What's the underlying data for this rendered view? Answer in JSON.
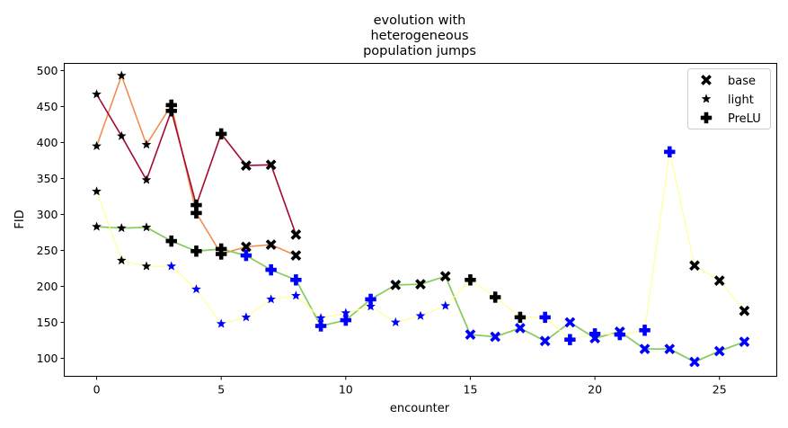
{
  "chart_data": {
    "type": "line",
    "title": [
      "evolution with",
      "heterogeneous",
      "population jumps"
    ],
    "xlabel": "encounter",
    "ylabel": "FID",
    "xlim": [
      -1.3,
      27.3
    ],
    "ylim": [
      75,
      510
    ],
    "xticks": [
      0,
      5,
      10,
      15,
      20,
      25
    ],
    "yticks": [
      100,
      150,
      200,
      250,
      300,
      350,
      400,
      450,
      500
    ],
    "legend": {
      "location": "top-right",
      "entries": [
        {
          "label": "base",
          "marker": "X"
        },
        {
          "label": "light",
          "marker": "star"
        },
        {
          "label": "PreLU",
          "marker": "plus"
        }
      ]
    },
    "series": [
      {
        "name": "orange line",
        "color": "#f28d52",
        "width": 1.6,
        "points": [
          {
            "x": 0,
            "y": 395,
            "m": "star",
            "c": "#000000"
          },
          {
            "x": 1,
            "y": 493,
            "m": "star",
            "c": "#000000"
          },
          {
            "x": 2,
            "y": 397,
            "m": "star",
            "c": "#000000"
          },
          {
            "x": 3,
            "y": 452,
            "m": "plus",
            "c": "#000000"
          },
          {
            "x": 4,
            "y": 302,
            "m": "plus",
            "c": "#000000"
          },
          {
            "x": 5,
            "y": 245,
            "m": "plus",
            "c": "#000000"
          },
          {
            "x": 6,
            "y": 255,
            "m": "X",
            "c": "#000000"
          },
          {
            "x": 7,
            "y": 258,
            "m": "X",
            "c": "#000000"
          },
          {
            "x": 8,
            "y": 243,
            "m": "X",
            "c": "#000000"
          }
        ]
      },
      {
        "name": "crimson line",
        "color": "#a50a2e",
        "width": 1.6,
        "points": [
          {
            "x": 0,
            "y": 467,
            "m": "star",
            "c": "#000000"
          },
          {
            "x": 1,
            "y": 409,
            "m": "star",
            "c": "#000000"
          },
          {
            "x": 2,
            "y": 348,
            "m": "star",
            "c": "#000000"
          },
          {
            "x": 3,
            "y": 444,
            "m": "plus",
            "c": "#000000"
          },
          {
            "x": 4,
            "y": 313,
            "m": "plus",
            "c": "#000000"
          },
          {
            "x": 5,
            "y": 412,
            "m": "plus",
            "c": "#000000"
          },
          {
            "x": 6,
            "y": 368,
            "m": "X",
            "c": "#000000"
          },
          {
            "x": 7,
            "y": 369,
            "m": "X",
            "c": "#000000"
          },
          {
            "x": 8,
            "y": 272,
            "m": "X",
            "c": "#000000"
          }
        ]
      },
      {
        "name": "green line",
        "color": "#8bcc62",
        "width": 1.8,
        "points": [
          {
            "x": 0,
            "y": 283,
            "m": "star",
            "c": "#000000"
          },
          {
            "x": 1,
            "y": 281,
            "m": "star",
            "c": "#000000"
          },
          {
            "x": 2,
            "y": 282,
            "m": "star",
            "c": "#000000"
          },
          {
            "x": 3,
            "y": 263,
            "m": "plus",
            "c": "#000000"
          },
          {
            "x": 4,
            "y": 249,
            "m": "plus",
            "c": "#000000"
          },
          {
            "x": 5,
            "y": 252,
            "m": "plus",
            "c": "#000000"
          },
          {
            "x": 6,
            "y": 243,
            "m": "plus",
            "c": "#0000ff"
          },
          {
            "x": 7,
            "y": 223,
            "m": "plus",
            "c": "#0000ff"
          },
          {
            "x": 8,
            "y": 209,
            "m": "plus",
            "c": "#0000ff"
          },
          {
            "x": 9,
            "y": 145,
            "m": "plus",
            "c": "#0000ff"
          },
          {
            "x": 10,
            "y": 153,
            "m": "plus",
            "c": "#0000ff"
          },
          {
            "x": 11,
            "y": 182,
            "m": "plus",
            "c": "#0000ff"
          },
          {
            "x": 12,
            "y": 202,
            "m": "X",
            "c": "#000000"
          },
          {
            "x": 13,
            "y": 203,
            "m": "X",
            "c": "#000000"
          },
          {
            "x": 14,
            "y": 214,
            "m": "X",
            "c": "#000000"
          },
          {
            "x": 15,
            "y": 133,
            "m": "X",
            "c": "#0000ff"
          },
          {
            "x": 16,
            "y": 130,
            "m": "X",
            "c": "#0000ff"
          },
          {
            "x": 17,
            "y": 142,
            "m": "X",
            "c": "#0000ff"
          },
          {
            "x": 18,
            "y": 124,
            "m": "X",
            "c": "#0000ff"
          },
          {
            "x": 19,
            "y": 150,
            "m": "X",
            "c": "#0000ff"
          },
          {
            "x": 20,
            "y": 128,
            "m": "X",
            "c": "#0000ff"
          },
          {
            "x": 21,
            "y": 137,
            "m": "X",
            "c": "#0000ff"
          },
          {
            "x": 22,
            "y": 113,
            "m": "X",
            "c": "#0000ff"
          },
          {
            "x": 23,
            "y": 113,
            "m": "X",
            "c": "#0000ff"
          },
          {
            "x": 24,
            "y": 95,
            "m": "X",
            "c": "#0000ff"
          },
          {
            "x": 25,
            "y": 110,
            "m": "X",
            "c": "#0000ff"
          },
          {
            "x": 26,
            "y": 123,
            "m": "X",
            "c": "#0000ff"
          }
        ]
      },
      {
        "name": "yellow line",
        "color": "#ffff99",
        "width": 1.2,
        "points": [
          {
            "x": 0,
            "y": 332,
            "m": "star",
            "c": "#000000"
          },
          {
            "x": 1,
            "y": 236,
            "m": "star",
            "c": "#000000"
          },
          {
            "x": 2,
            "y": 228,
            "m": "star",
            "c": "#000000"
          },
          {
            "x": 3,
            "y": 228,
            "m": "star",
            "c": "#0000ff"
          },
          {
            "x": 4,
            "y": 196,
            "m": "star",
            "c": "#0000ff"
          },
          {
            "x": 5,
            "y": 148,
            "m": "star",
            "c": "#0000ff"
          },
          {
            "x": 6,
            "y": 157,
            "m": "star",
            "c": "#0000ff"
          },
          {
            "x": 7,
            "y": 182,
            "m": "star",
            "c": "#0000ff"
          },
          {
            "x": 8,
            "y": 187,
            "m": "star",
            "c": "#0000ff"
          },
          {
            "x": 9,
            "y": 156,
            "m": "star",
            "c": "#0000ff"
          },
          {
            "x": 10,
            "y": 163,
            "m": "star",
            "c": "#0000ff"
          },
          {
            "x": 11,
            "y": 172,
            "m": "star",
            "c": "#0000ff"
          },
          {
            "x": 12,
            "y": 150,
            "m": "star",
            "c": "#0000ff"
          },
          {
            "x": 13,
            "y": 159,
            "m": "star",
            "c": "#0000ff"
          },
          {
            "x": 14,
            "y": 173,
            "m": "star",
            "c": "#0000ff"
          },
          {
            "x": 15,
            "y": 209,
            "m": "plus",
            "c": "#000000"
          },
          {
            "x": 16,
            "y": 185,
            "m": "plus",
            "c": "#000000"
          },
          {
            "x": 17,
            "y": 157,
            "m": "plus",
            "c": "#000000"
          },
          {
            "x": 18,
            "y": 157,
            "m": "plus",
            "c": "#0000ff"
          },
          {
            "x": 19,
            "y": 126,
            "m": "plus",
            "c": "#0000ff"
          },
          {
            "x": 20,
            "y": 134,
            "m": "plus",
            "c": "#0000ff"
          },
          {
            "x": 21,
            "y": 133,
            "m": "plus",
            "c": "#0000ff"
          },
          {
            "x": 22,
            "y": 139,
            "m": "plus",
            "c": "#0000ff"
          },
          {
            "x": 23,
            "y": 387,
            "m": "plus",
            "c": "#0000ff"
          },
          {
            "x": 24,
            "y": 229,
            "m": "X",
            "c": "#000000"
          },
          {
            "x": 25,
            "y": 208,
            "m": "X",
            "c": "#000000"
          },
          {
            "x": 26,
            "y": 166,
            "m": "X",
            "c": "#000000"
          }
        ]
      }
    ]
  }
}
